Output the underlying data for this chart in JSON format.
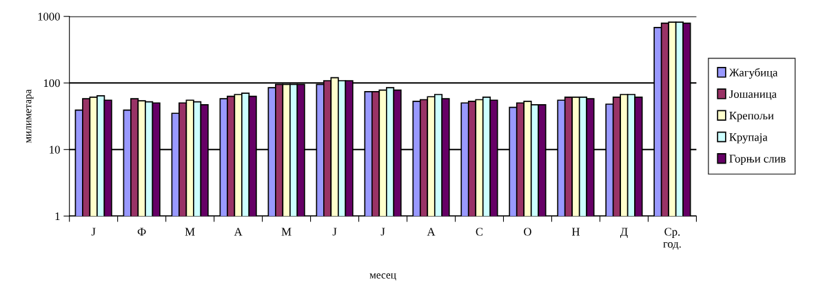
{
  "chart_data": {
    "type": "bar",
    "xlabel": "месец",
    "ylabel": "милиметара",
    "categories": [
      "Ј",
      "Ф",
      "М",
      "А",
      "М",
      "Ј",
      "Ј",
      "А",
      "С",
      "О",
      "Н",
      "Д",
      "Ср.\nгод."
    ],
    "series": [
      {
        "name": "Жагубица",
        "color": "#9999ff",
        "values": [
          39,
          39,
          35,
          58,
          85,
          95,
          74,
          53,
          50,
          43,
          55,
          48,
          680
        ]
      },
      {
        "name": "Јошаница",
        "color": "#993366",
        "values": [
          58,
          58,
          50,
          63,
          95,
          108,
          74,
          56,
          53,
          50,
          61,
          61,
          790
        ]
      },
      {
        "name": "Крепољи",
        "color": "#ffffcc",
        "values": [
          61,
          54,
          55,
          67,
          95,
          120,
          78,
          62,
          56,
          53,
          61,
          67,
          820
        ]
      },
      {
        "name": "Крупаја",
        "color": "#ccffff",
        "values": [
          64,
          52,
          52,
          70,
          95,
          108,
          85,
          67,
          61,
          47,
          61,
          67,
          820
        ]
      },
      {
        "name": "Горњи слив",
        "color": "#660066",
        "values": [
          55,
          50,
          47,
          63,
          95,
          108,
          78,
          58,
          55,
          47,
          58,
          61,
          790
        ]
      }
    ],
    "log": "y",
    "ylim": [
      1,
      1000
    ],
    "yticks": [
      1,
      10,
      100,
      1000
    ],
    "grid": "y",
    "legend": "right"
  }
}
